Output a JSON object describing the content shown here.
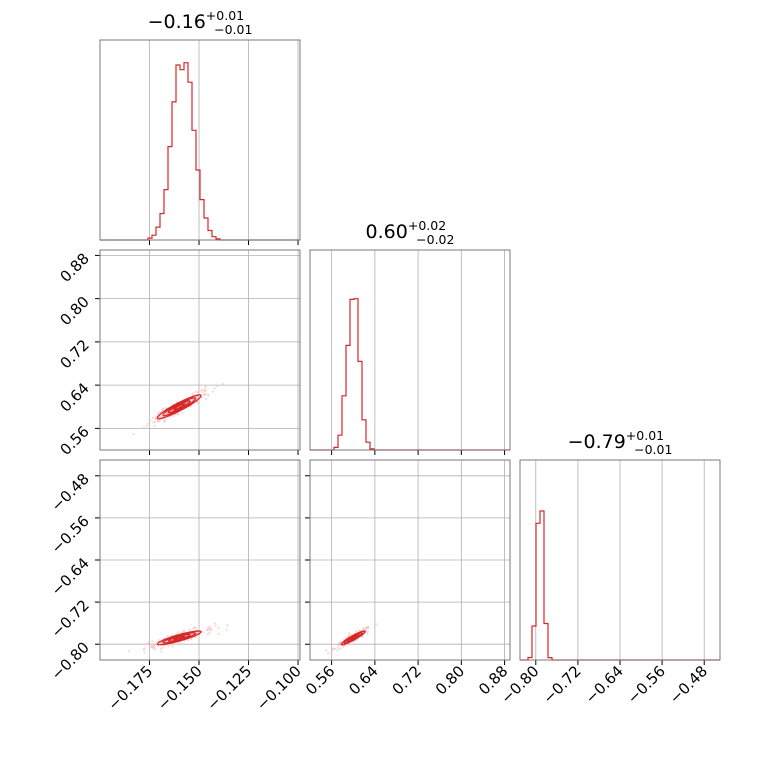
{
  "chart_data": {
    "type": "corner",
    "color": "#d62728",
    "parameters": [
      {
        "id": "p0",
        "range": [
          -0.2,
          -0.099
        ],
        "ticks": [
          -0.175,
          -0.15,
          -0.125,
          -0.1
        ],
        "tick_labels": [
          "−0.175",
          "−0.150",
          "−0.125",
          "−0.100"
        ],
        "title": {
          "value": "−0.16",
          "plus": "+0.01",
          "minus": "−0.01"
        },
        "hist": {
          "mean": -0.158,
          "sd": 0.0055,
          "peak": 0.98
        }
      },
      {
        "id": "p1",
        "range": [
          0.52,
          0.89
        ],
        "ticks": [
          0.56,
          0.64,
          0.72,
          0.8,
          0.88
        ],
        "tick_labels": [
          "0.56",
          "0.64",
          "0.72",
          "0.80",
          "0.88"
        ],
        "title": {
          "value": "0.60",
          "plus": "+0.02",
          "minus": "−0.02"
        },
        "hist": {
          "mean": 0.6,
          "sd": 0.011,
          "peak": 0.9
        }
      },
      {
        "id": "p2",
        "range": [
          -0.83,
          -0.45
        ],
        "ticks": [
          -0.8,
          -0.72,
          -0.64,
          -0.56,
          -0.48
        ],
        "tick_labels": [
          "−0.80",
          "−0.72",
          "−0.64",
          "−0.56",
          "−0.48"
        ],
        "title": {
          "value": "−0.79",
          "plus": "+0.01",
          "minus": "−0.01"
        },
        "hist": {
          "mean": -0.792,
          "sd": 0.0065,
          "peak": 0.92
        }
      }
    ],
    "pairs": [
      {
        "x": "p0",
        "y": "p1",
        "cx": -0.16,
        "cy": 0.6,
        "sx": 0.0055,
        "sy": 0.011,
        "rho": 0.93
      },
      {
        "x": "p0",
        "y": "p2",
        "cx": -0.16,
        "cy": -0.788,
        "sx": 0.0055,
        "sy": 0.0065,
        "rho": 0.88
      },
      {
        "x": "p1",
        "y": "p2",
        "cx": 0.6,
        "cy": -0.788,
        "sx": 0.011,
        "sy": 0.0065,
        "rho": 0.93
      }
    ],
    "grid": true
  }
}
